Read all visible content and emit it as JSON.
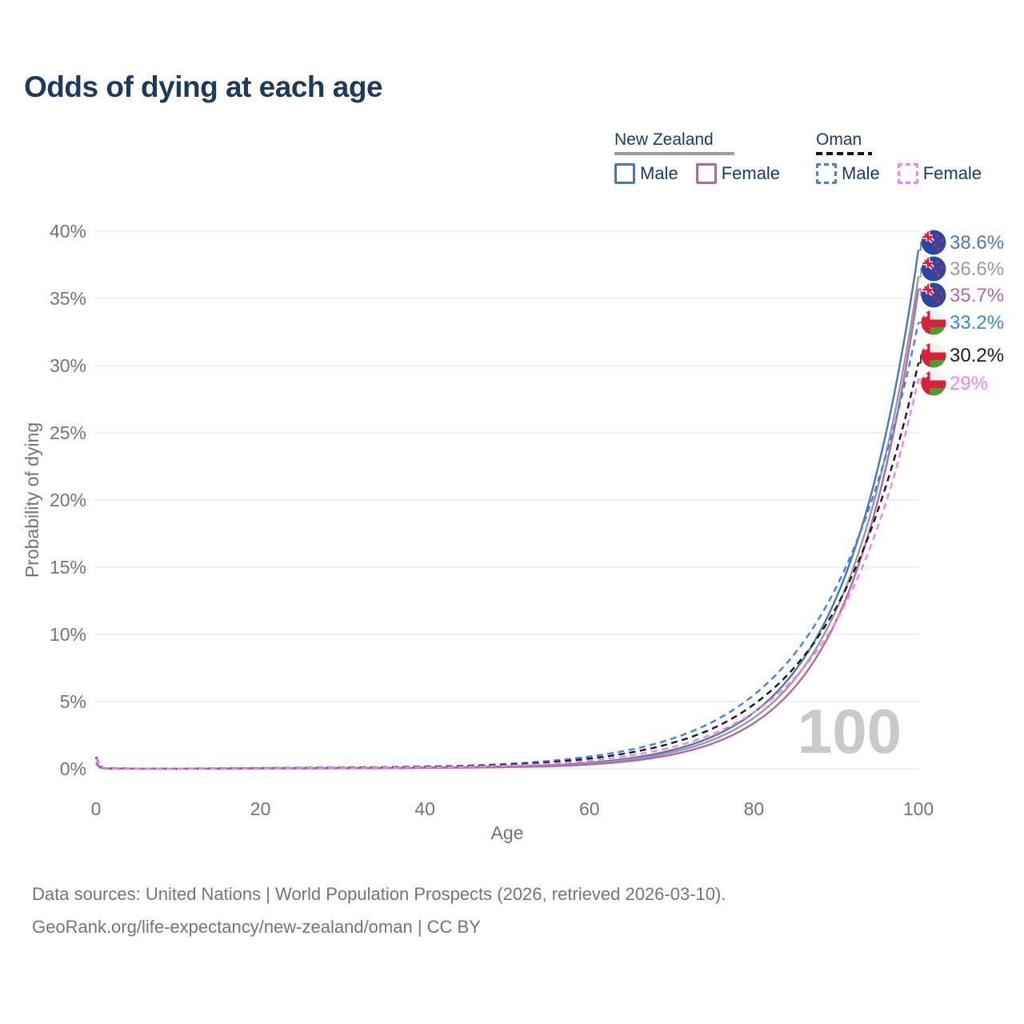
{
  "title": "Odds of dying at each age",
  "legend": {
    "groups": [
      {
        "name": "New Zealand",
        "style": "solid",
        "underline_color": "#9e9e9e",
        "items": [
          {
            "label": "Male",
            "color": "#4a77bb"
          },
          {
            "label": "Female",
            "color": "#ae6aa8"
          }
        ]
      },
      {
        "name": "Oman",
        "style": "dashed",
        "underline_color": "#161616",
        "items": [
          {
            "label": "Male",
            "color": "#3f82f0"
          },
          {
            "label": "Female",
            "color": "#fb80e6"
          }
        ]
      }
    ]
  },
  "chart_data": {
    "type": "line",
    "title": "Odds of dying at each age",
    "xlabel": "Age",
    "ylabel": "Probability of dying",
    "xlim": [
      0,
      100
    ],
    "ylim": [
      0,
      40
    ],
    "x_ticks": [
      0,
      20,
      40,
      60,
      80,
      100
    ],
    "y_ticks": [
      0,
      5,
      10,
      15,
      20,
      25,
      30,
      35,
      40
    ],
    "y_tick_suffix": "%",
    "grid": "horizontal",
    "legend_position": "top-right",
    "watermark": "100",
    "colors": {
      "nz_male": "#4a77bb",
      "nz_both": "#9a9a9a",
      "nz_female": "#ae6aa8",
      "oman_male": "#3f82f0",
      "oman_both": "#1c1c1c",
      "oman_female": "#fb80e6"
    },
    "series": [
      {
        "name": "New Zealand Male",
        "country": "new-zealand",
        "sex": "male",
        "color": "#4a77bb",
        "dash": false,
        "flag": "nz",
        "end_label": "38.6%",
        "end_value": 38.6,
        "points": [
          [
            0,
            0.45
          ],
          [
            1,
            0.03
          ],
          [
            5,
            0.01
          ],
          [
            10,
            0.01
          ],
          [
            15,
            0.02
          ],
          [
            20,
            0.04
          ],
          [
            25,
            0.05
          ],
          [
            30,
            0.06
          ],
          [
            35,
            0.07
          ],
          [
            40,
            0.09
          ],
          [
            45,
            0.12
          ],
          [
            50,
            0.18
          ],
          [
            55,
            0.26
          ],
          [
            60,
            0.45
          ],
          [
            65,
            0.79
          ],
          [
            70,
            1.38
          ],
          [
            75,
            2.41
          ],
          [
            80,
            4.19
          ],
          [
            85,
            7.3
          ],
          [
            90,
            12.7
          ],
          [
            95,
            22.2
          ],
          [
            100,
            38.6
          ]
        ]
      },
      {
        "name": "New Zealand Both sexes",
        "country": "new-zealand",
        "sex": "both",
        "color": "#9a9a9a",
        "dash": false,
        "flag": "nz",
        "end_label": "36.6%",
        "end_value": 36.6,
        "points": [
          [
            0,
            0.42
          ],
          [
            1,
            0.025
          ],
          [
            5,
            0.01
          ],
          [
            10,
            0.01
          ],
          [
            15,
            0.018
          ],
          [
            20,
            0.035
          ],
          [
            25,
            0.045
          ],
          [
            30,
            0.055
          ],
          [
            35,
            0.065
          ],
          [
            40,
            0.085
          ],
          [
            45,
            0.11
          ],
          [
            50,
            0.16
          ],
          [
            55,
            0.23
          ],
          [
            60,
            0.4
          ],
          [
            65,
            0.7
          ],
          [
            70,
            1.22
          ],
          [
            75,
            2.16
          ],
          [
            80,
            3.8
          ],
          [
            85,
            6.7
          ],
          [
            90,
            11.8
          ],
          [
            95,
            20.8
          ],
          [
            100,
            36.6
          ]
        ]
      },
      {
        "name": "New Zealand Female",
        "country": "new-zealand",
        "sex": "female",
        "color": "#ae6aa8",
        "dash": false,
        "flag": "nz",
        "end_label": "35.7%",
        "end_value": 35.7,
        "points": [
          [
            0,
            0.38
          ],
          [
            1,
            0.02
          ],
          [
            5,
            0.008
          ],
          [
            10,
            0.008
          ],
          [
            15,
            0.012
          ],
          [
            20,
            0.025
          ],
          [
            25,
            0.03
          ],
          [
            30,
            0.04
          ],
          [
            35,
            0.05
          ],
          [
            40,
            0.07
          ],
          [
            45,
            0.09
          ],
          [
            50,
            0.13
          ],
          [
            55,
            0.18
          ],
          [
            60,
            0.32
          ],
          [
            65,
            0.58
          ],
          [
            70,
            1.05
          ],
          [
            75,
            1.89
          ],
          [
            80,
            3.4
          ],
          [
            85,
            6.1
          ],
          [
            90,
            11.0
          ],
          [
            95,
            19.8
          ],
          [
            100,
            35.7
          ]
        ]
      },
      {
        "name": "Oman Male",
        "country": "oman",
        "sex": "male",
        "color": "#3f82f0",
        "dash": true,
        "flag": "oman",
        "end_label": "33.2%",
        "end_value": 33.2,
        "points": [
          [
            0,
            0.9
          ],
          [
            1,
            0.05
          ],
          [
            5,
            0.02
          ],
          [
            10,
            0.02
          ],
          [
            15,
            0.03
          ],
          [
            20,
            0.06
          ],
          [
            25,
            0.08
          ],
          [
            30,
            0.1
          ],
          [
            35,
            0.13
          ],
          [
            40,
            0.17
          ],
          [
            45,
            0.24
          ],
          [
            50,
            0.37
          ],
          [
            55,
            0.58
          ],
          [
            60,
            0.91
          ],
          [
            65,
            1.42
          ],
          [
            70,
            2.23
          ],
          [
            75,
            3.5
          ],
          [
            80,
            5.5
          ],
          [
            85,
            8.6
          ],
          [
            90,
            13.5
          ],
          [
            95,
            21.2
          ],
          [
            100,
            33.2
          ]
        ]
      },
      {
        "name": "Oman Both sexes",
        "country": "oman",
        "sex": "both",
        "color": "#1c1c1c",
        "dash": true,
        "flag": "oman",
        "end_label": "30.2%",
        "end_value": 30.2,
        "points": [
          [
            0,
            0.85
          ],
          [
            1,
            0.045
          ],
          [
            5,
            0.018
          ],
          [
            10,
            0.018
          ],
          [
            15,
            0.025
          ],
          [
            20,
            0.05
          ],
          [
            25,
            0.065
          ],
          [
            30,
            0.08
          ],
          [
            35,
            0.1
          ],
          [
            40,
            0.14
          ],
          [
            45,
            0.19
          ],
          [
            50,
            0.3
          ],
          [
            55,
            0.48
          ],
          [
            60,
            0.76
          ],
          [
            65,
            1.21
          ],
          [
            70,
            1.91
          ],
          [
            75,
            3.0
          ],
          [
            80,
            4.8
          ],
          [
            85,
            7.6
          ],
          [
            90,
            12.0
          ],
          [
            95,
            19.1
          ],
          [
            100,
            30.2
          ]
        ]
      },
      {
        "name": "Oman Female",
        "country": "oman",
        "sex": "female",
        "color": "#fb80e6",
        "dash": true,
        "flag": "oman",
        "end_label": "29%",
        "end_value": 29.0,
        "points": [
          [
            0,
            0.8
          ],
          [
            1,
            0.04
          ],
          [
            5,
            0.015
          ],
          [
            10,
            0.015
          ],
          [
            15,
            0.02
          ],
          [
            20,
            0.04
          ],
          [
            25,
            0.05
          ],
          [
            30,
            0.065
          ],
          [
            35,
            0.085
          ],
          [
            40,
            0.11
          ],
          [
            45,
            0.15
          ],
          [
            50,
            0.23
          ],
          [
            55,
            0.38
          ],
          [
            60,
            0.61
          ],
          [
            65,
            0.99
          ],
          [
            70,
            1.6
          ],
          [
            75,
            2.6
          ],
          [
            80,
            4.2
          ],
          [
            85,
            6.8
          ],
          [
            90,
            11.0
          ],
          [
            95,
            17.9
          ],
          [
            100,
            29.0
          ]
        ]
      }
    ]
  },
  "footer": {
    "line1": "Data sources: United Nations | World Population Prospects (2026, retrieved 2026-03-10).",
    "line2": "GeoRank.org/life-expectancy/new-zealand/oman | CC BY"
  }
}
